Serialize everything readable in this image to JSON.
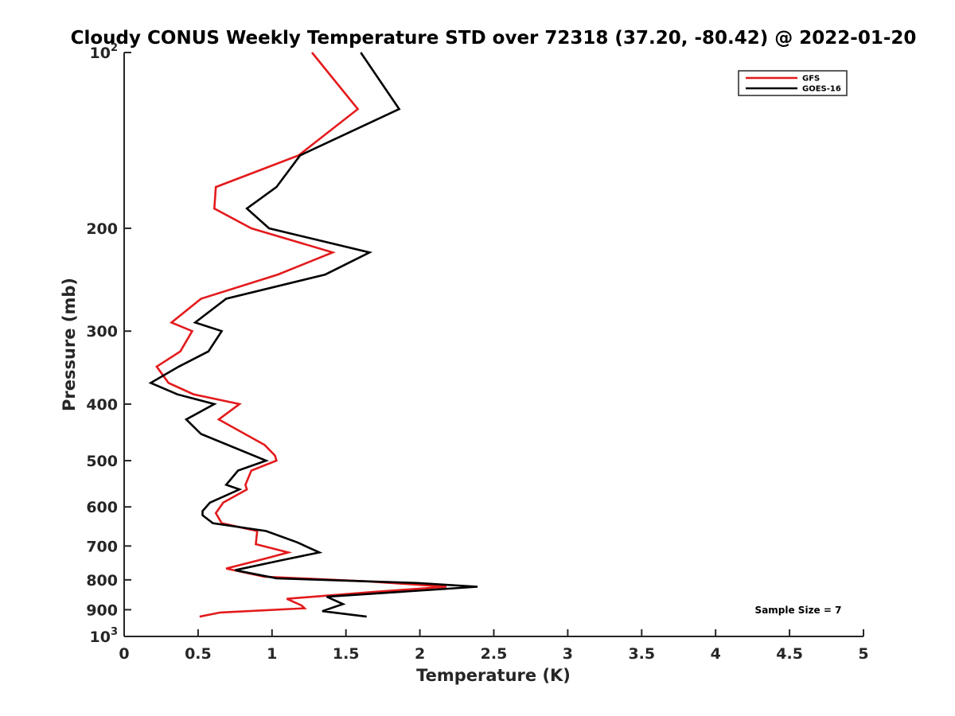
{
  "chart_data": {
    "type": "line",
    "title": "Cloudy CONUS Weekly Temperature STD over 72318 (37.20, -80.42) @ 2022-01-20",
    "xlabel": "Temperature (K)",
    "ylabel": "Pressure (mb)",
    "xlim": [
      0,
      5
    ],
    "ylim": [
      100,
      1000
    ],
    "yscale": "log",
    "y_reversed": true,
    "grid": false,
    "x_ticks": [
      {
        "value": 0,
        "label": "0"
      },
      {
        "value": 0.5,
        "label": "0.5"
      },
      {
        "value": 1,
        "label": "1"
      },
      {
        "value": 1.5,
        "label": "1.5"
      },
      {
        "value": 2,
        "label": "2"
      },
      {
        "value": 2.5,
        "label": "2.5"
      },
      {
        "value": 3,
        "label": "3"
      },
      {
        "value": 3.5,
        "label": "3.5"
      },
      {
        "value": 4,
        "label": "4"
      },
      {
        "value": 4.5,
        "label": "4.5"
      },
      {
        "value": 5,
        "label": "5"
      }
    ],
    "y_ticks": [
      {
        "value": 100,
        "base": "10",
        "exp": "2"
      },
      {
        "value": 200,
        "label": "200"
      },
      {
        "value": 300,
        "label": "300"
      },
      {
        "value": 400,
        "label": "400"
      },
      {
        "value": 500,
        "label": "500"
      },
      {
        "value": 600,
        "label": "600"
      },
      {
        "value": 700,
        "label": "700"
      },
      {
        "value": 800,
        "label": "800"
      },
      {
        "value": 900,
        "label": "900"
      },
      {
        "value": 1000,
        "base": "10",
        "exp": "3"
      }
    ],
    "legend_position": "top-right",
    "series": [
      {
        "name": "GFS",
        "color": "#e31a1c",
        "points": [
          [
            1.27,
            100
          ],
          [
            1.58,
            125
          ],
          [
            1.18,
            150
          ],
          [
            0.62,
            170
          ],
          [
            0.61,
            185
          ],
          [
            0.86,
            200
          ],
          [
            1.41,
            220
          ],
          [
            1.04,
            240
          ],
          [
            0.52,
            264
          ],
          [
            0.32,
            290
          ],
          [
            0.46,
            300
          ],
          [
            0.38,
            325
          ],
          [
            0.22,
            345
          ],
          [
            0.3,
            368
          ],
          [
            0.47,
            385
          ],
          [
            0.78,
            400
          ],
          [
            0.64,
            425
          ],
          [
            0.95,
            470
          ],
          [
            1.02,
            490
          ],
          [
            1.03,
            500
          ],
          [
            0.86,
            520
          ],
          [
            0.82,
            550
          ],
          [
            0.83,
            560
          ],
          [
            0.67,
            590
          ],
          [
            0.62,
            615
          ],
          [
            0.66,
            640
          ],
          [
            0.9,
            660
          ],
          [
            0.89,
            695
          ],
          [
            1.11,
            718
          ],
          [
            0.96,
            735
          ],
          [
            0.69,
            765
          ],
          [
            0.95,
            790
          ],
          [
            1.66,
            805
          ],
          [
            2.18,
            822
          ],
          [
            1.66,
            840
          ],
          [
            1.1,
            862
          ],
          [
            1.2,
            885
          ],
          [
            1.22,
            895
          ],
          [
            0.65,
            910
          ],
          [
            0.51,
            925
          ]
        ]
      },
      {
        "name": "GOES-16",
        "color": "#000000",
        "points": [
          [
            1.6,
            100
          ],
          [
            1.86,
            125
          ],
          [
            1.19,
            150
          ],
          [
            1.03,
            170
          ],
          [
            0.83,
            185
          ],
          [
            0.98,
            200
          ],
          [
            1.66,
            220
          ],
          [
            1.36,
            240
          ],
          [
            0.69,
            264
          ],
          [
            0.48,
            290
          ],
          [
            0.66,
            300
          ],
          [
            0.57,
            325
          ],
          [
            0.37,
            345
          ],
          [
            0.18,
            368
          ],
          [
            0.36,
            385
          ],
          [
            0.61,
            400
          ],
          [
            0.42,
            425
          ],
          [
            0.52,
            450
          ],
          [
            0.96,
            500
          ],
          [
            0.77,
            520
          ],
          [
            0.69,
            550
          ],
          [
            0.78,
            560
          ],
          [
            0.58,
            590
          ],
          [
            0.53,
            610
          ],
          [
            0.53,
            620
          ],
          [
            0.6,
            640
          ],
          [
            0.96,
            660
          ],
          [
            1.17,
            690
          ],
          [
            1.32,
            718
          ],
          [
            1.07,
            740
          ],
          [
            0.75,
            770
          ],
          [
            1.03,
            795
          ],
          [
            1.98,
            810
          ],
          [
            2.39,
            822
          ],
          [
            1.37,
            855
          ],
          [
            1.48,
            880
          ],
          [
            1.34,
            905
          ],
          [
            1.64,
            925
          ]
        ]
      }
    ],
    "annotations": {
      "sample_size": "Sample Size = 7"
    }
  }
}
